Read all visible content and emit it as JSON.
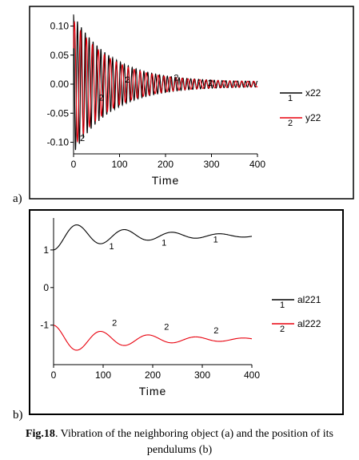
{
  "panels": [
    {
      "letter": "a)",
      "xlabel": "Time",
      "colors": {
        "s1": "#000000",
        "s2": "#e8000d"
      },
      "chart_data": {
        "type": "line",
        "xlabel": "Time",
        "ylabel": "",
        "xlim": [
          0,
          400
        ],
        "ylim": [
          -0.12,
          0.12
        ],
        "xticks": [
          0,
          100,
          200,
          300,
          400
        ],
        "yticks": [
          0.1,
          0.05,
          0.0,
          -0.05,
          -0.1
        ],
        "ytick_labels": [
          "0.10",
          "0.05",
          "0.00",
          "-0.05",
          "-0.10"
        ],
        "series": [
          {
            "name": "x22",
            "index_label": "1",
            "amplitude": 0.115,
            "decay_per_time": 0.012,
            "period": 8.5,
            "phase": 1.5708
          },
          {
            "name": "y22",
            "index_label": "2",
            "amplitude": 0.105,
            "decay_per_time": 0.012,
            "period": 13.0,
            "phase": 0.6
          }
        ],
        "series_tags": [
          {
            "label": "2",
            "x": 14,
            "y": -0.098
          },
          {
            "label": "2",
            "x": 55,
            "y": -0.028
          },
          {
            "label": "2",
            "x": 112,
            "y": 0.003
          },
          {
            "label": "2",
            "x": 218,
            "y": 0.006
          },
          {
            "label": "2",
            "x": 292,
            "y": -0.003
          }
        ],
        "legend": [
          {
            "index": "1",
            "name": "x22"
          },
          {
            "index": "2",
            "name": "y22"
          }
        ]
      }
    },
    {
      "letter": "b)",
      "xlabel": "Time",
      "colors": {
        "s1": "#000000",
        "s2": "#e8000d"
      },
      "chart_data": {
        "type": "line",
        "xlabel": "Time",
        "ylabel": "",
        "xlim": [
          0,
          400
        ],
        "ylim": [
          -2.05,
          1.85
        ],
        "xticks": [
          0,
          100,
          200,
          300,
          400
        ],
        "yticks": [
          1,
          0,
          -1
        ],
        "ytick_labels": [
          "1",
          "0",
          "-1"
        ],
        "series": [
          {
            "name": "al221",
            "index_label": "1",
            "center": 1.38,
            "amplitude": 0.42,
            "decay_per_time": 0.006,
            "period": 96,
            "start": 1.0
          },
          {
            "name": "al222",
            "index_label": "2",
            "center": -1.38,
            "amplitude": 0.42,
            "decay_per_time": 0.006,
            "period": 96,
            "start": -1.0
          }
        ],
        "series_tags": [
          {
            "label": "1",
            "x": 112,
            "y": 1.02
          },
          {
            "label": "1",
            "x": 218,
            "y": 1.12
          },
          {
            "label": "1",
            "x": 322,
            "y": 1.2
          },
          {
            "label": "2",
            "x": 118,
            "y": -1.02
          },
          {
            "label": "2",
            "x": 223,
            "y": -1.12
          },
          {
            "label": "2",
            "x": 323,
            "y": -1.22
          }
        ],
        "legend": [
          {
            "index": "1",
            "name": "al221"
          },
          {
            "index": "2",
            "name": "al222"
          }
        ]
      }
    }
  ],
  "caption": {
    "label": "Fig.18",
    "text": ". Vibration of the neighboring object (a) and the position of its pendulums (b)"
  }
}
